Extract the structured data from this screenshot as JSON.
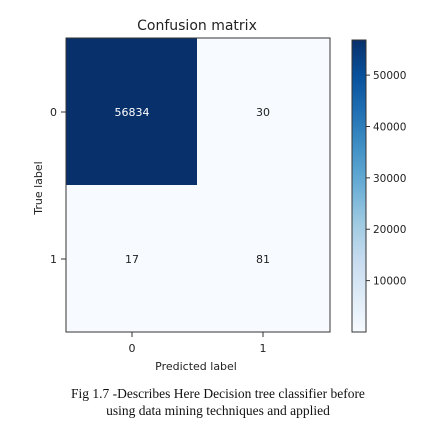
{
  "chart_data": {
    "type": "heatmap",
    "title": "Confusion matrix",
    "xlabel": "Predicted label",
    "ylabel": "True label",
    "x_categories": [
      "0",
      "1"
    ],
    "y_categories": [
      "0",
      "1"
    ],
    "matrix": [
      [
        56834,
        30
      ],
      [
        17,
        81
      ]
    ],
    "colormap": "Blues",
    "colorbar": {
      "range": [
        0,
        56834
      ],
      "ticks": [
        10000,
        20000,
        30000,
        40000,
        50000
      ],
      "tick_labels": [
        "10000",
        "20000",
        "30000",
        "40000",
        "50000"
      ]
    },
    "grid": false,
    "colors": {
      "high": "#08306b",
      "low": "#f7fbff",
      "text_on_dark": "#ffffff",
      "text_on_light": "#222222"
    }
  },
  "caption": {
    "line1": "Fig 1.7 -Describes Here Decision tree classifier before",
    "line2": "using data mining techniques and applied"
  }
}
